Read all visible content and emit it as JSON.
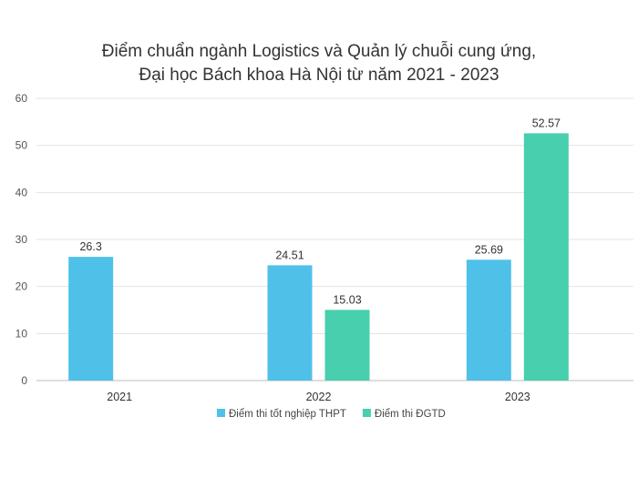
{
  "chart_data": {
    "type": "bar",
    "title": [
      "Điểm chuẩn ngành Logistics và Quản lý chuỗi cung ứng,",
      "Đại học Bách khoa Hà Nội từ năm 2021 - 2023"
    ],
    "xlabel": "",
    "ylabel": "",
    "categories": [
      "2021",
      "2022",
      "2023"
    ],
    "series": [
      {
        "name": "Điểm thi tốt nghiệp THPT",
        "color": "#4fc1e9",
        "values": [
          26.3,
          24.51,
          25.69
        ],
        "labels": [
          "26.3",
          "24.51",
          "25.69"
        ]
      },
      {
        "name": "Điểm thi ĐGTD",
        "color": "#48cfad",
        "values": [
          null,
          15.03,
          52.57
        ],
        "labels": [
          "",
          "15.03",
          "52.57"
        ]
      }
    ],
    "ylim": [
      0,
      60
    ],
    "yticks": [
      "0",
      "10",
      "20",
      "30",
      "40",
      "50",
      "60"
    ],
    "grid": true,
    "legend_position": "bottom"
  }
}
